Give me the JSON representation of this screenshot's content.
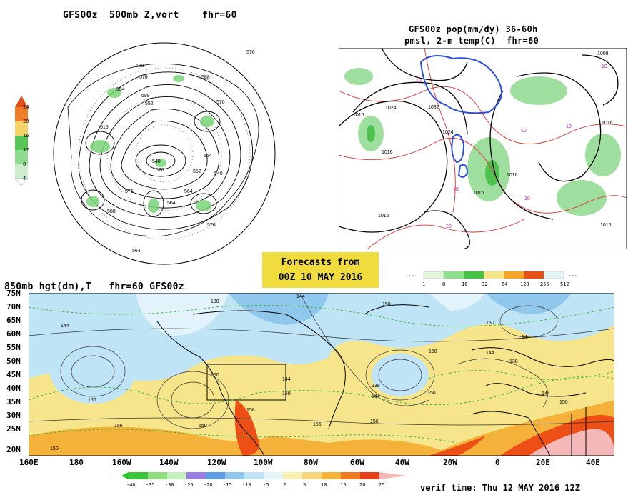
{
  "panels": {
    "top_left": {
      "title": "GFS00z  500mb Z,vort    fhr=60",
      "colorbar": [
        "24",
        "20",
        "16",
        "12",
        "8",
        "4"
      ],
      "contours": [
        "588",
        "576",
        "564",
        "552",
        "540",
        "528",
        "516",
        "588",
        "576",
        "564",
        "552",
        "540",
        "576",
        "564",
        "576",
        "588",
        "564",
        "576",
        "564",
        "588"
      ]
    },
    "top_right": {
      "title_line1": "GFS00z pop(mm/dy) 36-60h",
      "title_line2": "pmsl, 2-m temp(C)  fhr=60",
      "colorbar": [
        "1",
        "8",
        "16",
        "32",
        "64",
        "128",
        "256",
        "512"
      ],
      "pressure_labels": [
        "1024",
        "1016",
        "1032",
        "1024",
        "1016",
        "1016",
        "1016",
        "1016",
        "1008",
        "1016",
        "1016"
      ],
      "temp_labels": [
        "10",
        "10",
        "10",
        "10",
        "10",
        "10",
        "20"
      ]
    },
    "bottom": {
      "title": "850mb hgt(dm),T   fhr=60 GFS00z",
      "lat_labels": [
        "75N",
        "70N",
        "65N",
        "60N",
        "55N",
        "50N",
        "45N",
        "40N",
        "35N",
        "30N",
        "25N",
        "20N"
      ],
      "lon_labels": [
        "160E",
        "180",
        "160W",
        "140W",
        "120W",
        "100W",
        "80W",
        "60W",
        "40W",
        "20W",
        "0",
        "20E",
        "40E"
      ],
      "colorbar": [
        "-40",
        "-35",
        "-30",
        "-25",
        "-20",
        "-15",
        "-10",
        "-5",
        "0",
        "5",
        "10",
        "15",
        "20",
        "25"
      ],
      "contour_labels": [
        "144",
        "150",
        "138",
        "144",
        "150",
        "150",
        "144",
        "150",
        "156",
        "150",
        "156",
        "156",
        "150",
        "138",
        "144",
        "150",
        "150",
        "144",
        "138",
        "144",
        "150",
        "150",
        "156",
        "144"
      ]
    }
  },
  "banner": {
    "line1": "Forecasts from",
    "line2": "00Z 10 MAY 2016"
  },
  "verif": "verif time: Thu 12 MAY 2016 12Z",
  "colors": {
    "banner": "#f0dc3c",
    "land_warm": "#f5e08a",
    "cold": "#a8d4f0",
    "hot": "#f05a1e",
    "green_precip": "#78d478"
  }
}
